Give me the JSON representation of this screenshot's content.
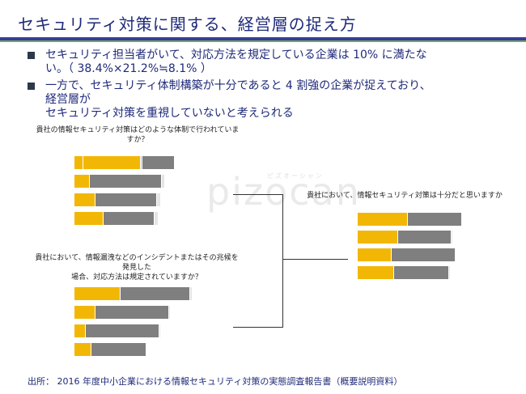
{
  "header": {
    "title": "セキュリティ対策に関する、経営層の捉え方"
  },
  "bullets": [
    {
      "lines": [
        "セキュリティ担当者がいて、対応方法を規定している企業は 10% に満たな",
        "い。（ 38.4%×21.2%≒8.1% ）"
      ]
    },
    {
      "lines": [
        "一方で、セキュリティ体制構築が十分であると 4 割強の企業が捉えており、",
        "経営層が",
        "セキュリティ対策を重視していないと考えられる"
      ]
    }
  ],
  "charts": {
    "left_top": {
      "title_lines": [
        "貴社の情報セキュリティ対策はどのような体制で行われていま",
        "すか？"
      ],
      "bars": [
        [
          {
            "c": "yellow",
            "v": 0.07
          },
          {
            "c": "yellow",
            "v": 0.46
          },
          {
            "c": "lightgray",
            "v": 0.01
          },
          {
            "c": "gray",
            "v": 0.26
          }
        ],
        [
          {
            "c": "yellow",
            "v": 0.12
          },
          {
            "c": "gray",
            "v": 0.58
          },
          {
            "c": "pale",
            "v": 0.02
          }
        ],
        [
          {
            "c": "yellow",
            "v": 0.17
          },
          {
            "c": "gray",
            "v": 0.49
          },
          {
            "c": "pale",
            "v": 0.03
          }
        ],
        [
          {
            "c": "yellow",
            "v": 0.23
          },
          {
            "c": "gray",
            "v": 0.41
          },
          {
            "c": "pale",
            "v": 0.03
          }
        ]
      ]
    },
    "left_bottom": {
      "title_lines": [
        "貴社において、情報漏洩などのインシデントまたはその兆候を",
        "発見した",
        "場合、対応方法は規定されていますか？"
      ],
      "bars": [
        [
          {
            "c": "yellow",
            "v": 0.38
          },
          {
            "c": "gray",
            "v": 0.57
          },
          {
            "c": "pale",
            "v": 0.02
          }
        ],
        [
          {
            "c": "yellow",
            "v": 0.17
          },
          {
            "c": "gray",
            "v": 0.61
          },
          {
            "c": "pale",
            "v": 0.01
          }
        ],
        [
          {
            "c": "yellow",
            "v": 0.09
          },
          {
            "c": "gray",
            "v": 0.61
          },
          {
            "c": "pale",
            "v": 0.01
          }
        ],
        [
          {
            "c": "yellow",
            "v": 0.14
          },
          {
            "c": "gray",
            "v": 0.45
          },
          {
            "c": "pale",
            "v": 0.01
          }
        ]
      ]
    },
    "right": {
      "title_lines": [
        "貴社において、情報セキュリティ対策は十分だと思いますか"
      ],
      "bars": [
        [
          {
            "c": "yellow",
            "v": 0.4
          },
          {
            "c": "gray",
            "v": 0.43
          },
          {
            "c": "lightgray",
            "v": 0.01
          }
        ],
        [
          {
            "c": "yellow",
            "v": 0.32
          },
          {
            "c": "gray",
            "v": 0.43
          },
          {
            "c": "pale",
            "v": 0.01
          }
        ],
        [
          {
            "c": "yellow",
            "v": 0.27
          },
          {
            "c": "gray",
            "v": 0.51
          },
          {
            "c": "pale",
            "v": 0.01
          }
        ],
        [
          {
            "c": "yellow",
            "v": 0.29
          },
          {
            "c": "gray",
            "v": 0.44
          },
          {
            "c": "pale",
            "v": 0.01
          }
        ]
      ]
    }
  },
  "watermark": {
    "text": "pizocan",
    "kana": "ピズオーシャン"
  },
  "footer": {
    "source": "出所：  2016 年度中小企業における情報セキュリティ対策の実態調査報告書（概要説明資料）"
  }
}
